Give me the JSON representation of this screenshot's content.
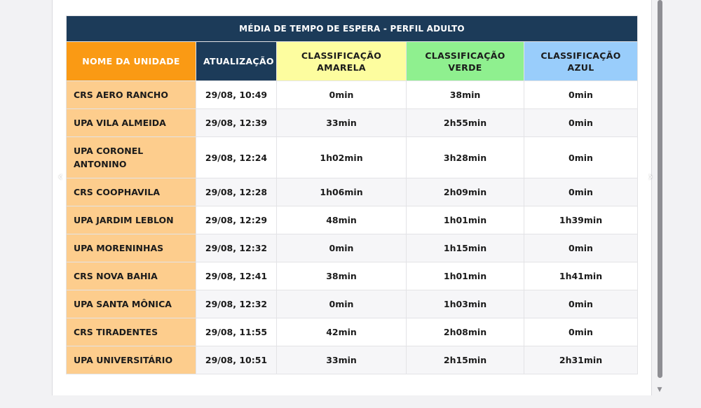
{
  "table": {
    "title": "MÉDIA DE TEMPO DE ESPERA - PERFIL ADULTO",
    "headers": {
      "unit": "NOME DA UNIDADE",
      "updated": "ATUALIZAÇÃO",
      "amarela": "CLASSIFICAÇÃO AMARELA",
      "verde": "CLASSIFICAÇÃO VERDE",
      "azul": "CLASSIFICAÇÃO AZUL"
    },
    "header_colors": {
      "unit": "#fa9a14",
      "updated": "#1c3b59",
      "amarela": "#fdfd9f",
      "verde": "#8ff08f",
      "azul": "#99cdfb"
    },
    "rows": [
      {
        "unit": "CRS AERO RANCHO",
        "updated": "29/08, 10:49",
        "amarela": "0min",
        "verde": "38min",
        "azul": "0min"
      },
      {
        "unit": "UPA VILA ALMEIDA",
        "updated": "29/08, 12:39",
        "amarela": "33min",
        "verde": "2h55min",
        "azul": "0min"
      },
      {
        "unit": "UPA CORONEL ANTONINO",
        "updated": "29/08, 12:24",
        "amarela": "1h02min",
        "verde": "3h28min",
        "azul": "0min"
      },
      {
        "unit": "CRS COOPHAVILA",
        "updated": "29/08, 12:28",
        "amarela": "1h06min",
        "verde": "2h09min",
        "azul": "0min"
      },
      {
        "unit": "UPA JARDIM LEBLON",
        "updated": "29/08, 12:29",
        "amarela": "48min",
        "verde": "1h01min",
        "azul": "1h39min"
      },
      {
        "unit": "UPA MORENINHAS",
        "updated": "29/08, 12:32",
        "amarela": "0min",
        "verde": "1h15min",
        "azul": "0min"
      },
      {
        "unit": "CRS NOVA BAHIA",
        "updated": "29/08, 12:41",
        "amarela": "38min",
        "verde": "1h01min",
        "azul": "1h41min"
      },
      {
        "unit": "UPA SANTA MÔNICA",
        "updated": "29/08, 12:32",
        "amarela": "0min",
        "verde": "1h03min",
        "azul": "0min"
      },
      {
        "unit": "CRS TIRADENTES",
        "updated": "29/08, 11:55",
        "amarela": "42min",
        "verde": "2h08min",
        "azul": "0min"
      },
      {
        "unit": "UPA UNIVERSITÁRIO",
        "updated": "29/08, 10:51",
        "amarela": "33min",
        "verde": "2h15min",
        "azul": "2h31min"
      }
    ]
  },
  "carousel": {
    "prev_icon": "chevron-left-icon",
    "next_icon": "chevron-right-icon",
    "prev_glyph": "‹",
    "next_glyph": "›"
  },
  "scrollbar": {
    "down_glyph": "▼"
  }
}
